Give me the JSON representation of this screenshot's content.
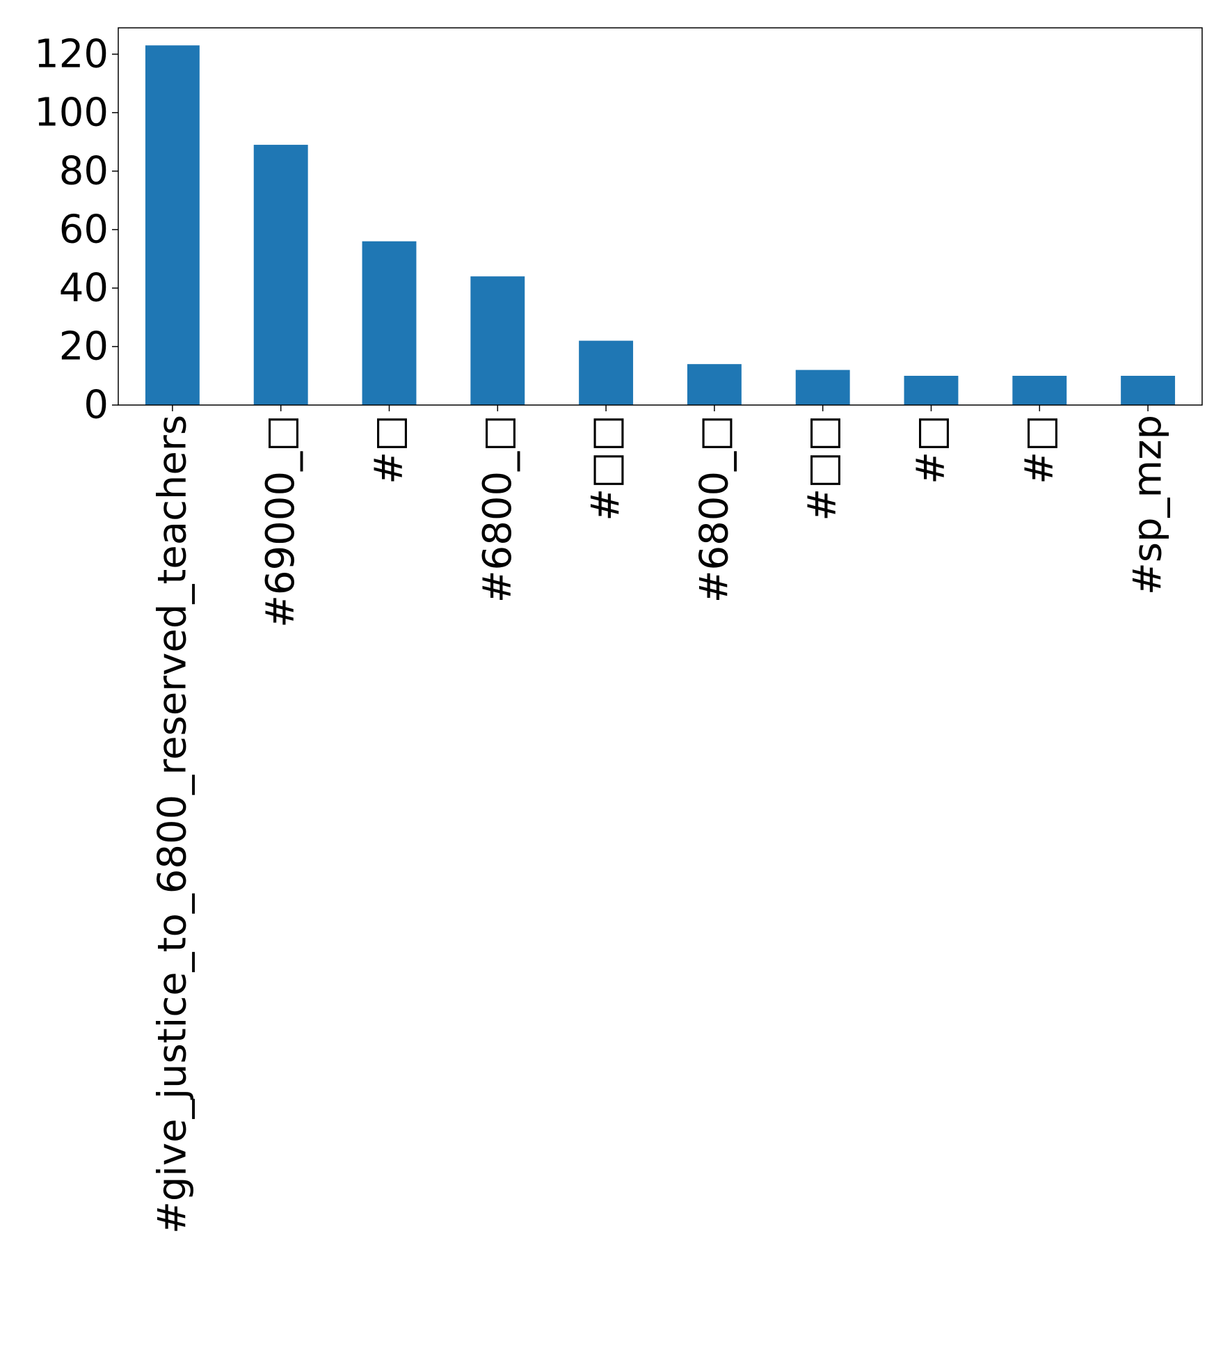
{
  "chart_data": {
    "type": "bar",
    "title": "",
    "xlabel": "",
    "ylabel": "",
    "categories": [
      "#give_justice_to_6800_reserved_teachers",
      "#69000_□",
      "#□",
      "#6800_□",
      "#□□",
      "#6800_□",
      "#□□",
      "#□",
      "#□",
      "#sp_mzp"
    ],
    "values": [
      123,
      89,
      56,
      44,
      22,
      14,
      12,
      10,
      10,
      10
    ],
    "ylim": [
      0,
      129
    ],
    "yticks": [
      0,
      20,
      40,
      60,
      80,
      100,
      120
    ],
    "grid": false,
    "bar_color": "#1f77b4",
    "xtick_rotation": "vertical"
  }
}
